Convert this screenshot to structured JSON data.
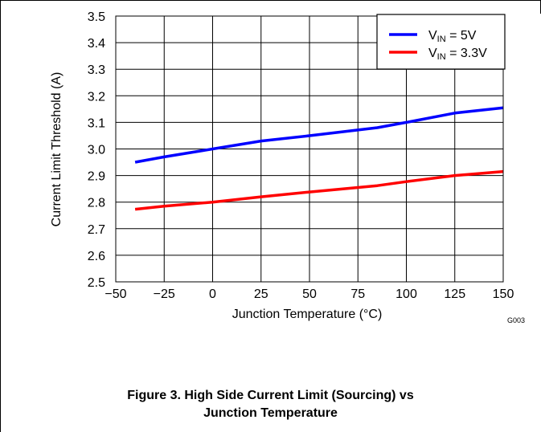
{
  "chart_data": {
    "type": "line",
    "xlabel": "Junction Temperature (°C)",
    "ylabel": "Current Limit Threshold (A)",
    "xlim": [
      -50,
      150
    ],
    "ylim": [
      2.5,
      3.5
    ],
    "xticks": [
      -50,
      -25,
      0,
      25,
      50,
      75,
      100,
      125,
      150
    ],
    "xtick_labels": [
      "−50",
      "−25",
      "0",
      "25",
      "50",
      "75",
      "100",
      "125",
      "150"
    ],
    "yticks": [
      2.5,
      2.6,
      2.7,
      2.8,
      2.9,
      3.0,
      3.1,
      3.2,
      3.3,
      3.4,
      3.5
    ],
    "ytick_labels": [
      "2.5",
      "2.6",
      "2.7",
      "2.8",
      "2.9",
      "3.0",
      "3.1",
      "3.2",
      "3.3",
      "3.4",
      "3.5"
    ],
    "grid": true,
    "legend_position": "top-right",
    "series": [
      {
        "name": "VIN = 5V",
        "label_main": "V",
        "label_sub": "IN",
        "label_rest": " = 5V",
        "color": "#0000ff",
        "x": [
          -40,
          -25,
          0,
          25,
          50,
          85,
          100,
          125,
          150
        ],
        "y": [
          2.95,
          2.97,
          3.0,
          3.03,
          3.05,
          3.08,
          3.1,
          3.135,
          3.155
        ]
      },
      {
        "name": "VIN = 3.3V",
        "label_main": "V",
        "label_sub": "IN",
        "label_rest": " = 3.3V",
        "color": "#ff0000",
        "x": [
          -40,
          -25,
          0,
          25,
          50,
          85,
          100,
          125,
          150
        ],
        "y": [
          2.773,
          2.785,
          2.8,
          2.82,
          2.838,
          2.862,
          2.877,
          2.9,
          2.915
        ]
      }
    ],
    "graph_id": "G003"
  },
  "caption": {
    "line1": "Figure 3. High Side Current Limit (Sourcing) vs",
    "line2": "Junction Temperature"
  }
}
